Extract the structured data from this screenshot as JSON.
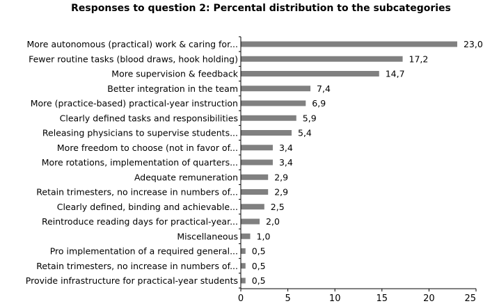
{
  "chart_data": {
    "type": "bar",
    "orientation": "horizontal",
    "title": "Responses to question 2: Percental distribution to the subcategories",
    "xlabel": "",
    "ylabel": "",
    "xlim": [
      0,
      25
    ],
    "xticks": [
      "0",
      "5",
      "10",
      "15",
      "20",
      "25"
    ],
    "grid": false,
    "bar_color": "#808080",
    "categories": [
      "More autonomous (practical) work & caring for...",
      "Fewer routine tasks (blood draws, hook holding)",
      "More supervision & feedback",
      "Better integration in the team",
      "More (practice-based) practical-year instruction",
      "Clearly defined tasks and responsibilities",
      "Releasing physicians to supervise students...",
      "More freedom to choose (not in favor of...",
      "More rotations, implementation of quarters...",
      "Adequate remuneration",
      "Retain trimesters, no increase in numbers of...",
      "Clearly defined, binding and achievable...",
      "Reintroduce reading days for practical-year...",
      "Miscellaneous",
      "Pro implementation of a required general...",
      "Retain trimesters, no increase in numbers of...",
      "Provide infrastructure for practical-year students"
    ],
    "values": [
      23.0,
      17.2,
      14.7,
      7.4,
      6.9,
      5.9,
      5.4,
      3.4,
      3.4,
      2.9,
      2.9,
      2.5,
      2.0,
      1.0,
      0.5,
      0.5,
      0.5
    ],
    "value_labels": [
      "23,0",
      "17,2",
      "14,7",
      "7,4",
      "6,9",
      "5,9",
      "5,4",
      "3,4",
      "3,4",
      "2,9",
      "2,9",
      "2,5",
      "2,0",
      "1,0",
      "0,5",
      "0,5",
      "0,5"
    ]
  }
}
